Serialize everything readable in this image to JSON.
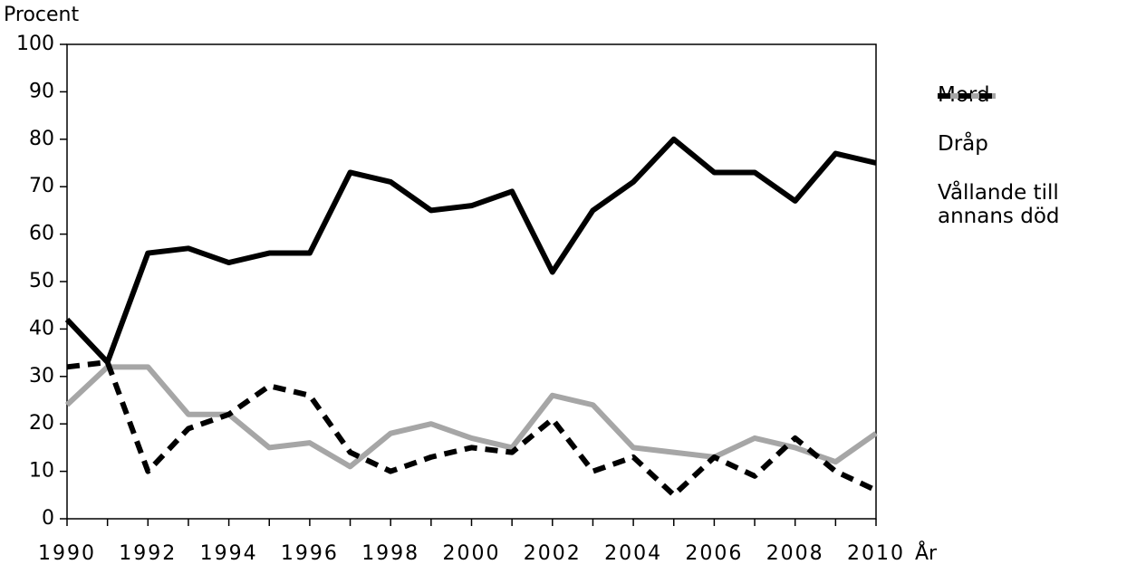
{
  "chart_data": {
    "type": "line",
    "y_label": "Procent",
    "x_label": "År",
    "x": [
      1990,
      1991,
      1992,
      1993,
      1994,
      1995,
      1996,
      1997,
      1998,
      1999,
      2000,
      2001,
      2002,
      2003,
      2004,
      2005,
      2006,
      2007,
      2008,
      2009,
      2010
    ],
    "series": [
      {
        "name": "Mord",
        "color": "#000000",
        "dash": "solid",
        "values": [
          42,
          33,
          56,
          57,
          54,
          56,
          56,
          73,
          71,
          65,
          66,
          69,
          52,
          65,
          71,
          80,
          73,
          73,
          67,
          77,
          75
        ]
      },
      {
        "name": "Dråp",
        "color": "#a6a6a6",
        "dash": "solid",
        "values": [
          24,
          32,
          32,
          22,
          22,
          15,
          16,
          11,
          18,
          20,
          17,
          15,
          26,
          24,
          15,
          14,
          13,
          17,
          15,
          12,
          18
        ]
      },
      {
        "name": "Vållande till annans död",
        "color": "#000000",
        "dash": "dashed",
        "values": [
          32,
          33,
          10,
          19,
          22,
          28,
          26,
          14,
          10,
          13,
          15,
          14,
          21,
          10,
          13,
          5,
          13,
          9,
          17,
          10,
          6
        ]
      }
    ],
    "xlim": [
      1990,
      2010
    ],
    "xticks": [
      1990,
      1992,
      1994,
      1996,
      1998,
      2000,
      2002,
      2004,
      2006,
      2008,
      2010
    ],
    "ylim": [
      0,
      100
    ],
    "yticks": [
      0,
      10,
      20,
      30,
      40,
      50,
      60,
      70,
      80,
      90,
      100
    ],
    "legend": "right"
  }
}
